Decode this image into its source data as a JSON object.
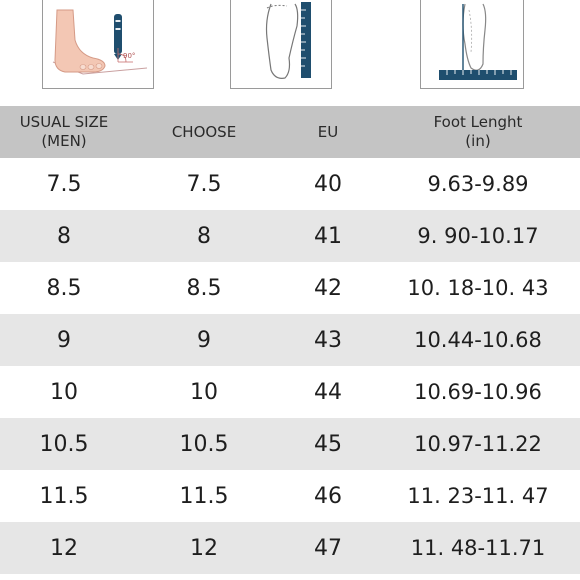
{
  "illustrations": {
    "angle_label": "90°"
  },
  "table": {
    "headers": {
      "usual_size_line1": "USUAL SIZE",
      "usual_size_line2": "(MEN)",
      "choose": "CHOOSE",
      "eu": "EU",
      "foot_length_line1": "Foot Lenght",
      "foot_length_line2": "(in)"
    },
    "rows": [
      [
        "7.5",
        "7.5",
        "40",
        "9.63-9.89"
      ],
      [
        "8",
        "8",
        "41",
        "9. 90-10.17"
      ],
      [
        "8.5",
        "8.5",
        "42",
        "10. 18-10. 43"
      ],
      [
        "9",
        "9",
        "43",
        "10.44-10.68"
      ],
      [
        "10",
        "10",
        "44",
        "10.69-10.96"
      ],
      [
        "10.5",
        "10.5",
        "45",
        "10.97-11.22"
      ],
      [
        "11.5",
        "11.5",
        "46",
        "11. 23-11. 47"
      ],
      [
        "12",
        "12",
        "47",
        "11. 48-11.71"
      ]
    ]
  },
  "colors": {
    "header_bg": "#c4c4c4",
    "stripe_bg": "#e6e6e6",
    "ruler_blue": "#1f4e6e"
  }
}
